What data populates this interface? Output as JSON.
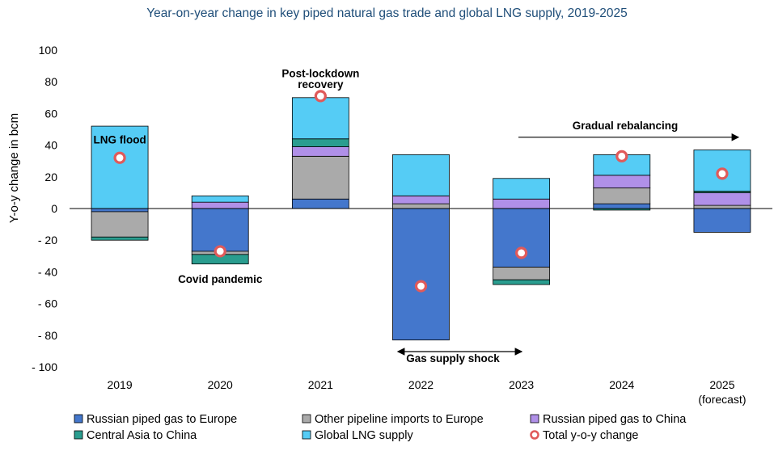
{
  "chart_data": {
    "type": "bar",
    "title": "Year-on-year change in key piped natural gas trade and global LNG supply, 2019-2025",
    "ylabel": "Y-o-y change in bcm",
    "xlabel": "",
    "ylim": [
      -100,
      100
    ],
    "yticks": [
      "100",
      "80",
      "60",
      "40",
      "20",
      "0",
      "- 20",
      "- 40",
      "- 60",
      "- 80",
      "- 100"
    ],
    "grid": false,
    "legend_position": "bottom",
    "categories": [
      "2019",
      "2020",
      "2021",
      "2022",
      "2023",
      "2024",
      "2025"
    ],
    "category_sublabels": [
      "",
      "",
      "",
      "",
      "",
      "",
      "(forecast)"
    ],
    "series": [
      {
        "name": "Russian piped gas to Europe",
        "color": "#4477cc",
        "values": [
          -2,
          -27,
          6,
          -83,
          -37,
          3,
          -15
        ]
      },
      {
        "name": "Other pipeline imports to Europe",
        "color": "#aaaaaa",
        "values": [
          -16,
          -2,
          27,
          3,
          -8,
          10,
          2
        ]
      },
      {
        "name": "Russian piped gas to China",
        "color": "#b090e8",
        "values": [
          0,
          4,
          6,
          5,
          6,
          8,
          8
        ]
      },
      {
        "name": "Central Asia to China",
        "color": "#2a9d8f",
        "values": [
          -2,
          -6,
          5,
          0,
          -3,
          -1,
          1
        ]
      },
      {
        "name": "Global LNG supply",
        "color": "#55ccf5",
        "values": [
          52,
          4,
          26,
          26,
          13,
          13,
          26
        ]
      }
    ],
    "total": {
      "name": "Total y-o-y change",
      "values": [
        32,
        -27,
        71,
        -49,
        -28,
        33,
        22
      ]
    },
    "annotations": [
      {
        "text": "LNG flood"
      },
      {
        "text": "Covid pandemic"
      },
      {
        "text": "Post-lockdown"
      },
      {
        "text": "recovery"
      },
      {
        "text": "Gas supply shock"
      },
      {
        "text": "Gradual rebalancing"
      }
    ]
  }
}
